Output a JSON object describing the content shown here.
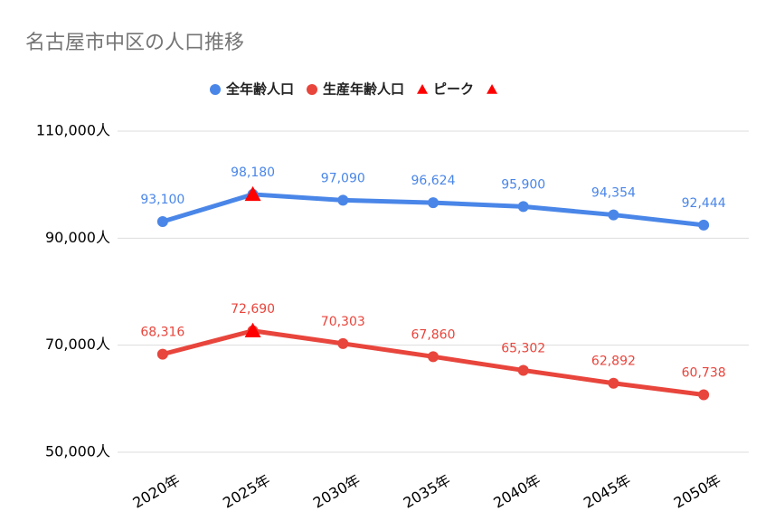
{
  "chart_data": {
    "type": "line",
    "title": "名古屋市中区の人口推移",
    "categories": [
      "2020年",
      "2025年",
      "2030年",
      "2035年",
      "2040年",
      "2045年",
      "2050年"
    ],
    "series": [
      {
        "name": "全年齢人口",
        "color": "#4a86e8",
        "marker": "circle",
        "values": [
          93100,
          98180,
          97090,
          96624,
          95900,
          94354,
          92444
        ],
        "value_labels": [
          "93,100",
          "98,180",
          "97,090",
          "96,624",
          "95,900",
          "94,354",
          "92,444"
        ]
      },
      {
        "name": "生産年齢人口",
        "color": "#e8453c",
        "marker": "circle",
        "values": [
          68316,
          72690,
          70303,
          67860,
          65302,
          62892,
          60738
        ],
        "value_labels": [
          "68,316",
          "72,690",
          "70,303",
          "67,860",
          "65,302",
          "62,892",
          "60,738"
        ]
      },
      {
        "name": "ピーク",
        "color": "#ff0000",
        "marker": "triangle",
        "values": [
          null,
          98180,
          null,
          null,
          null,
          null,
          null
        ]
      },
      {
        "color": "#ff0000",
        "marker": "triangle",
        "values": [
          null,
          72690,
          null,
          null,
          null,
          null,
          null
        ]
      }
    ],
    "ylim": [
      50000,
      110000
    ],
    "yticks": [
      {
        "value": 50000,
        "label": "50,000人"
      },
      {
        "value": 70000,
        "label": "70,000人"
      },
      {
        "value": 90000,
        "label": "90,000人"
      },
      {
        "value": 110000,
        "label": "110,000人"
      }
    ],
    "grid": true
  }
}
